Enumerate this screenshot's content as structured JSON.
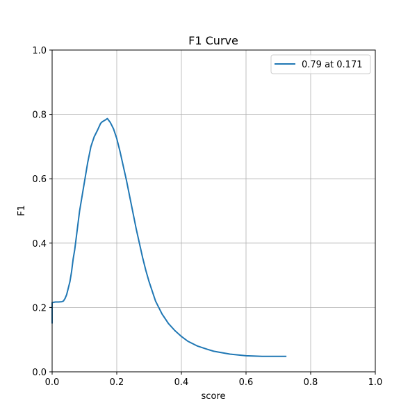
{
  "chart_data": {
    "type": "line",
    "title": "F1 Curve",
    "xlabel": "score",
    "ylabel": "F1",
    "xlim": [
      0,
      1
    ],
    "ylim": [
      0,
      1
    ],
    "xticks": [
      "0.0",
      "0.2",
      "0.4",
      "0.6",
      "0.8",
      "1.0"
    ],
    "yticks": [
      "0.0",
      "0.2",
      "0.4",
      "0.6",
      "0.8",
      "1.0"
    ],
    "grid": true,
    "legend_position": "top-right",
    "series": [
      {
        "name": "0.79 at 0.171",
        "color": "#1f77b4",
        "x": [
          0.0,
          0.0,
          0.01,
          0.02,
          0.03,
          0.035,
          0.04,
          0.045,
          0.05,
          0.055,
          0.06,
          0.065,
          0.07,
          0.075,
          0.08,
          0.085,
          0.09,
          0.095,
          0.1,
          0.11,
          0.12,
          0.125,
          0.13,
          0.14,
          0.15,
          0.155,
          0.16,
          0.165,
          0.171,
          0.18,
          0.19,
          0.2,
          0.21,
          0.22,
          0.23,
          0.24,
          0.25,
          0.26,
          0.27,
          0.28,
          0.29,
          0.3,
          0.32,
          0.34,
          0.36,
          0.38,
          0.4,
          0.42,
          0.45,
          0.48,
          0.5,
          0.55,
          0.6,
          0.65,
          0.7,
          0.725
        ],
        "y": [
          0.15,
          0.215,
          0.217,
          0.217,
          0.218,
          0.22,
          0.228,
          0.24,
          0.26,
          0.28,
          0.31,
          0.35,
          0.38,
          0.42,
          0.46,
          0.5,
          0.53,
          0.56,
          0.59,
          0.65,
          0.7,
          0.715,
          0.73,
          0.75,
          0.772,
          0.777,
          0.78,
          0.783,
          0.787,
          0.775,
          0.755,
          0.725,
          0.685,
          0.64,
          0.595,
          0.545,
          0.495,
          0.445,
          0.4,
          0.355,
          0.315,
          0.28,
          0.22,
          0.18,
          0.15,
          0.128,
          0.11,
          0.095,
          0.08,
          0.07,
          0.064,
          0.055,
          0.05,
          0.048,
          0.048,
          0.048
        ]
      }
    ]
  }
}
